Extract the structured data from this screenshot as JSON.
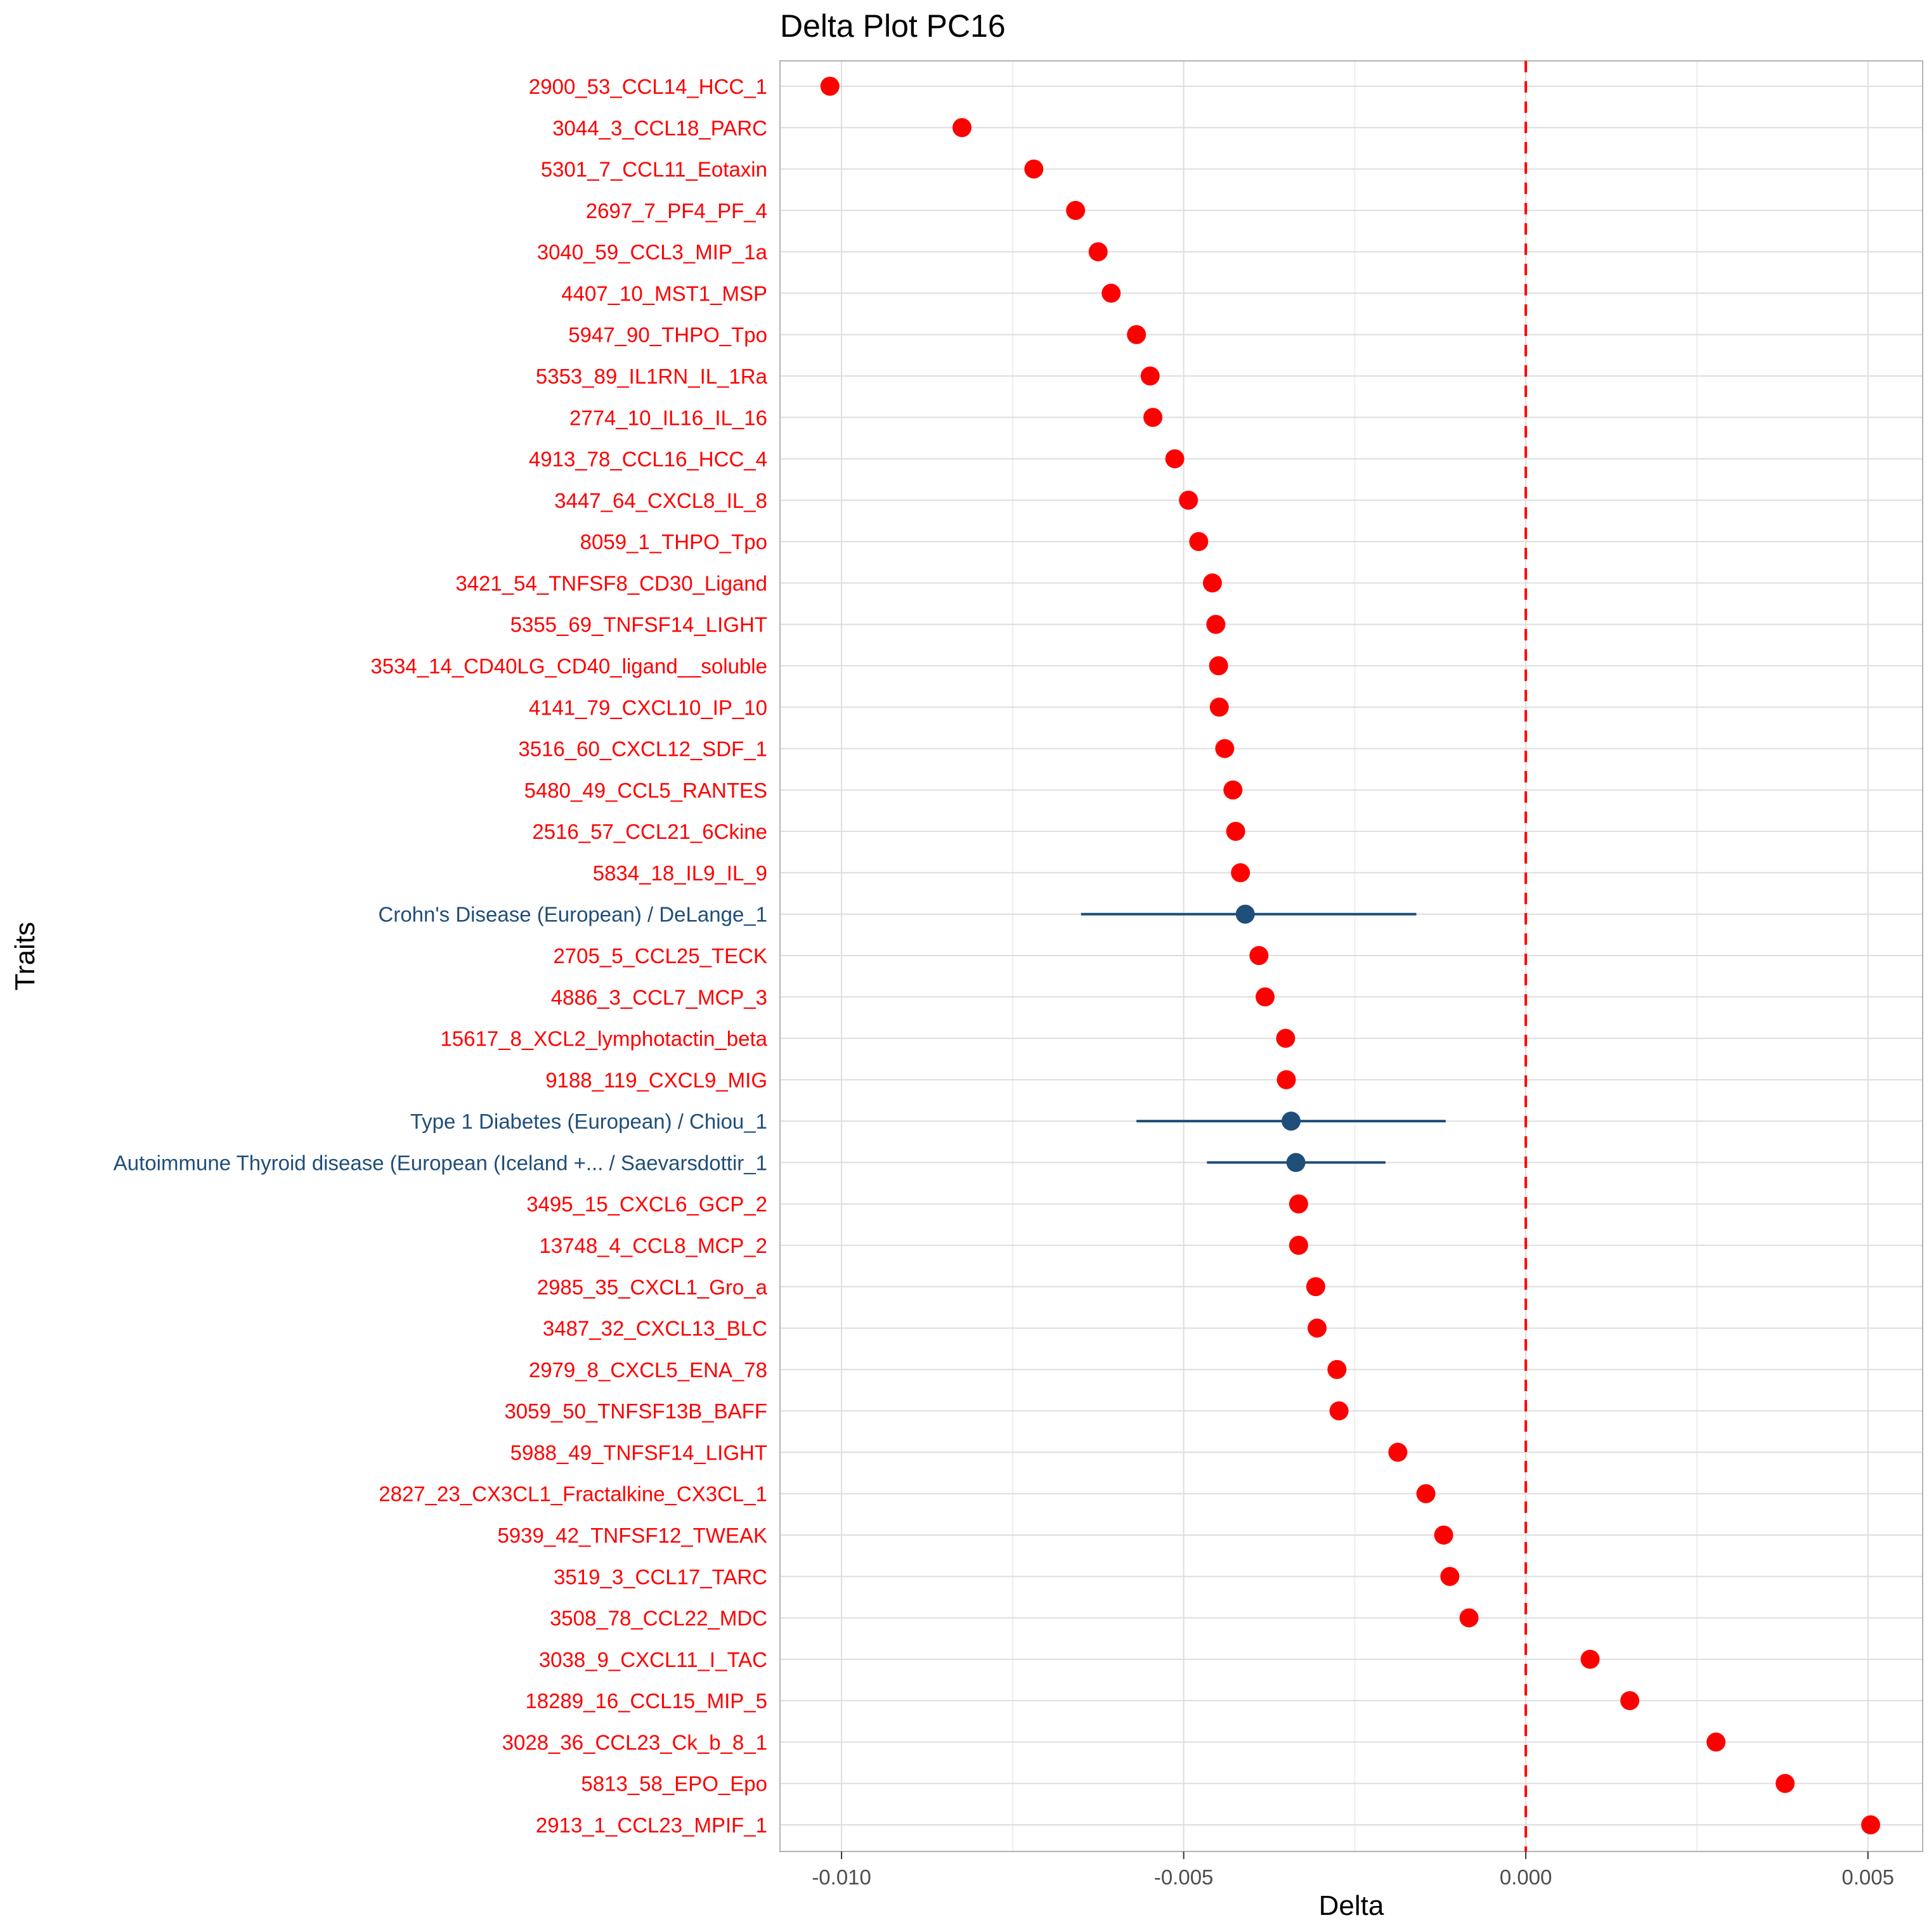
{
  "chart_data": {
    "type": "scatter",
    "title": "Delta Plot PC16",
    "xlabel": "Delta",
    "ylabel": "Traits",
    "xlim": [
      -0.0109,
      0.0058
    ],
    "x_ticks": [
      -0.01,
      -0.005,
      0.0,
      0.005
    ],
    "x_tick_labels": [
      "-0.010",
      "-0.005",
      "0.000",
      "0.005"
    ],
    "grid": true,
    "reference_line": {
      "x": 0.0,
      "style": "dashed",
      "color": "#ff0000"
    },
    "colors": {
      "protein": "#ff0000",
      "disease": "#1f4e79"
    },
    "points": [
      {
        "label": "2900_53_CCL14_HCC_1",
        "x": -0.01017,
        "group": "protein"
      },
      {
        "label": "3044_3_CCL18_PARC",
        "x": -0.00824,
        "group": "protein"
      },
      {
        "label": "5301_7_CCL11_Eotaxin",
        "x": -0.00719,
        "group": "protein"
      },
      {
        "label": "2697_7_PF4_PF_4",
        "x": -0.00658,
        "group": "protein"
      },
      {
        "label": "3040_59_CCL3_MIP_1a",
        "x": -0.00625,
        "group": "protein"
      },
      {
        "label": "4407_10_MST1_MSP",
        "x": -0.00606,
        "group": "protein"
      },
      {
        "label": "5947_90_THPO_Tpo",
        "x": -0.00569,
        "group": "protein"
      },
      {
        "label": "5353_89_IL1RN_IL_1Ra",
        "x": -0.00549,
        "group": "protein"
      },
      {
        "label": "2774_10_IL16_IL_16",
        "x": -0.00545,
        "group": "protein"
      },
      {
        "label": "4913_78_CCL16_HCC_4",
        "x": -0.00513,
        "group": "protein"
      },
      {
        "label": "3447_64_CXCL8_IL_8",
        "x": -0.00493,
        "group": "protein"
      },
      {
        "label": "8059_1_THPO_Tpo",
        "x": -0.00478,
        "group": "protein"
      },
      {
        "label": "3421_54_TNFSF8_CD30_Ligand",
        "x": -0.00458,
        "group": "protein"
      },
      {
        "label": "5355_69_TNFSF14_LIGHT",
        "x": -0.00453,
        "group": "protein"
      },
      {
        "label": "3534_14_CD40LG_CD40_ligand__soluble",
        "x": -0.00449,
        "group": "protein"
      },
      {
        "label": "4141_79_CXCL10_IP_10",
        "x": -0.00448,
        "group": "protein"
      },
      {
        "label": "3516_60_CXCL12_SDF_1",
        "x": -0.0044,
        "group": "protein"
      },
      {
        "label": "5480_49_CCL5_RANTES",
        "x": -0.00428,
        "group": "protein"
      },
      {
        "label": "2516_57_CCL21_6Ckine",
        "x": -0.00424,
        "group": "protein"
      },
      {
        "label": "5834_18_IL9_IL_9",
        "x": -0.00417,
        "group": "protein"
      },
      {
        "label": "Crohn's Disease (European) / DeLange_1",
        "x": -0.0041,
        "xmin": -0.0065,
        "xmax": -0.0016,
        "group": "disease"
      },
      {
        "label": "2705_5_CCL25_TECK",
        "x": -0.0039,
        "group": "protein"
      },
      {
        "label": "4886_3_CCL7_MCP_3",
        "x": -0.00381,
        "group": "protein"
      },
      {
        "label": "15617_8_XCL2_lymphotactin_beta",
        "x": -0.00351,
        "group": "protein"
      },
      {
        "label": "9188_119_CXCL9_MIG",
        "x": -0.0035,
        "group": "protein"
      },
      {
        "label": "Type 1 Diabetes (European) / Chiou_1",
        "x": -0.00343,
        "xmin": -0.00569,
        "xmax": -0.00117,
        "group": "disease"
      },
      {
        "label": "Autoimmune Thyroid disease (European (Iceland +... / Saevarsdottir_1",
        "x": -0.00336,
        "xmin": -0.00466,
        "xmax": -0.00205,
        "group": "disease"
      },
      {
        "label": "3495_15_CXCL6_GCP_2",
        "x": -0.00332,
        "group": "protein"
      },
      {
        "label": "13748_4_CCL8_MCP_2",
        "x": -0.00332,
        "group": "protein"
      },
      {
        "label": "2985_35_CXCL1_Gro_a",
        "x": -0.00307,
        "group": "protein"
      },
      {
        "label": "3487_32_CXCL13_BLC",
        "x": -0.00305,
        "group": "protein"
      },
      {
        "label": "2979_8_CXCL5_ENA_78",
        "x": -0.00276,
        "group": "protein"
      },
      {
        "label": "3059_50_TNFSF13B_BAFF",
        "x": -0.00273,
        "group": "protein"
      },
      {
        "label": "5988_49_TNFSF14_LIGHT",
        "x": -0.00187,
        "group": "protein"
      },
      {
        "label": "2827_23_CX3CL1_Fractalkine_CX3CL_1",
        "x": -0.00146,
        "group": "protein"
      },
      {
        "label": "5939_42_TNFSF12_TWEAK",
        "x": -0.0012,
        "group": "protein"
      },
      {
        "label": "3519_3_CCL17_TARC",
        "x": -0.00111,
        "group": "protein"
      },
      {
        "label": "3508_78_CCL22_MDC",
        "x": -0.00083,
        "group": "protein"
      },
      {
        "label": "3038_9_CXCL11_I_TAC",
        "x": 0.00094,
        "group": "protein"
      },
      {
        "label": "18289_16_CCL15_MIP_5",
        "x": 0.00152,
        "group": "protein"
      },
      {
        "label": "3028_36_CCL23_Ck_b_8_1",
        "x": 0.00278,
        "group": "protein"
      },
      {
        "label": "5813_58_EPO_Epo",
        "x": 0.00379,
        "group": "protein"
      },
      {
        "label": "2913_1_CCL23_MPIF_1",
        "x": 0.00504,
        "group": "protein"
      }
    ]
  }
}
